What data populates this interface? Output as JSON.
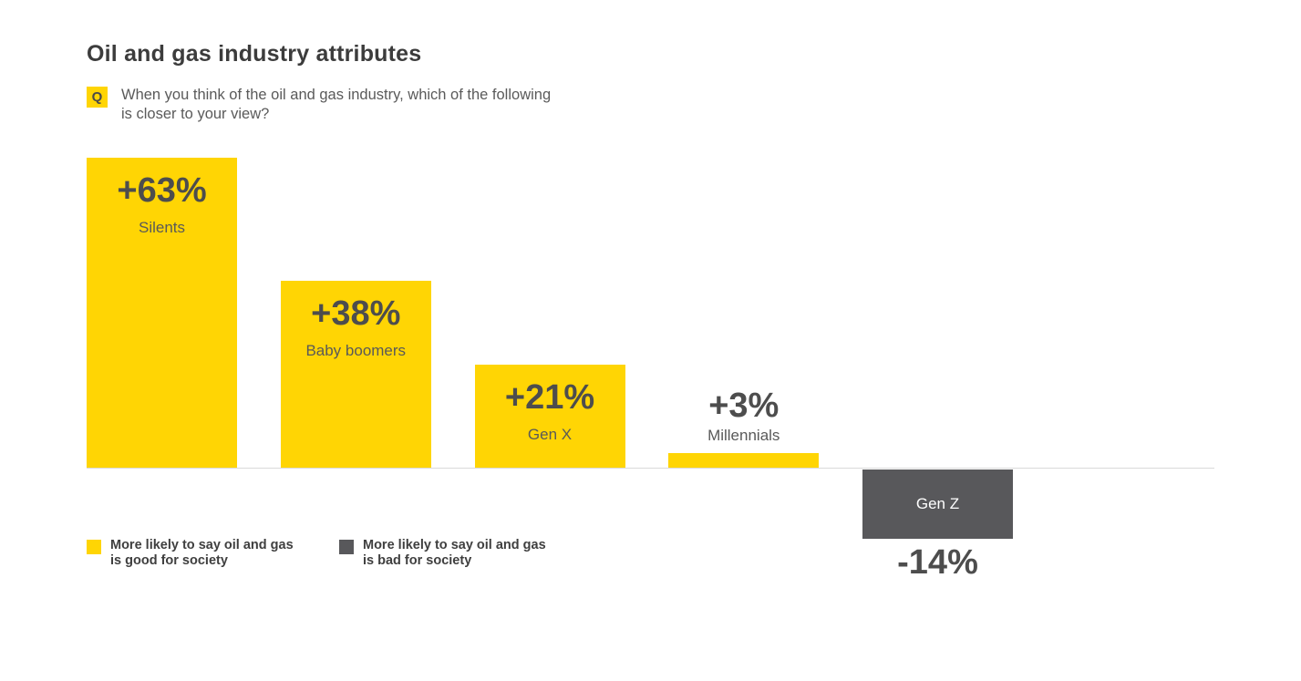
{
  "header": {
    "title": "Oil and gas industry attributes",
    "q_badge": "Q",
    "question_line1": "When you think of the oil and gas industry, which of the following",
    "question_line2": "is closer to your view?"
  },
  "legend": {
    "items": [
      {
        "color": "#FFD504",
        "line1": "More likely to say oil and gas",
        "line2": "is good for society"
      },
      {
        "color": "#58585B",
        "line1": "More likely to say oil and gas",
        "line2": "is bad for society"
      }
    ],
    "position": "bottom-left"
  },
  "colors": {
    "positive_bar": "#FFD504",
    "negative_bar": "#58585B",
    "value_text": "#4d4d4d",
    "category_text": "#595959",
    "negative_category_text": "#ffffff"
  },
  "chart_data": {
    "type": "bar",
    "title": "Oil and gas industry attributes",
    "subtitle": "When you think of the oil and gas industry, which of the following is closer to your view?",
    "categories": [
      "Silents",
      "Baby boomers",
      "Gen X",
      "Millennials",
      "Gen Z"
    ],
    "values": [
      63,
      38,
      21,
      3,
      -14
    ],
    "value_labels": [
      "+63%",
      "+38%",
      "+21%",
      "+3%",
      "-14%"
    ],
    "unit": "%",
    "xlabel": "",
    "ylabel": "",
    "ylim": [
      -20,
      70
    ],
    "grid": false,
    "baseline": 0,
    "positive_color": "#FFD504",
    "negative_color": "#58585B",
    "legend_entries": [
      "More likely to say oil and gas is good for society",
      "More likely to say oil and gas is bad for society"
    ],
    "legend_position": "bottom-left"
  }
}
